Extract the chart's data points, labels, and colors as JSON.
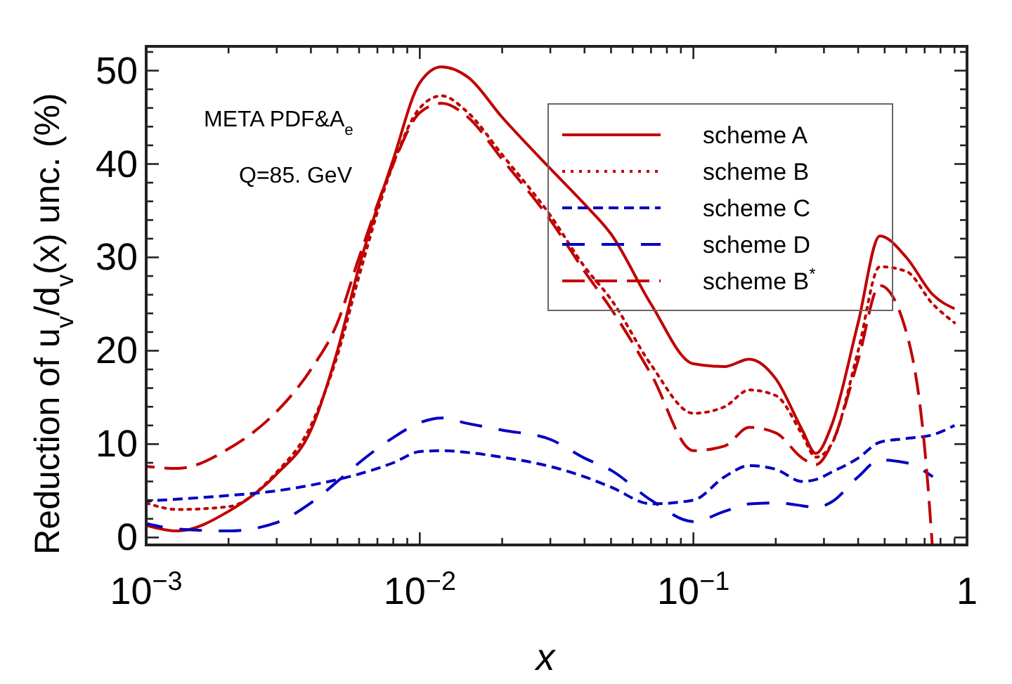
{
  "chart_data": {
    "type": "line",
    "xlabel": "x",
    "ylabel": "Reduction of u$_{v}$/d$_{v}$(x) unc. (%)",
    "annotations": [
      "META PDF&A$_{e}$",
      "Q=85. GeV"
    ],
    "log": "x",
    "legend": "top right",
    "grid": false,
    "xlim": [
      0.001,
      1
    ],
    "xticks": [
      {
        "value": 0.001,
        "label": "10$^{−3}$"
      },
      {
        "value": 0.002,
        "label": null
      },
      {
        "value": 0.003,
        "label": null
      },
      {
        "value": 0.004,
        "label": null
      },
      {
        "value": 0.005,
        "label": null
      },
      {
        "value": 0.006,
        "label": null
      },
      {
        "value": 0.007,
        "label": null
      },
      {
        "value": 0.008,
        "label": null
      },
      {
        "value": 0.009,
        "label": null
      },
      {
        "value": 0.01,
        "label": "10$^{−2}$"
      },
      {
        "value": 0.02,
        "label": null
      },
      {
        "value": 0.03,
        "label": null
      },
      {
        "value": 0.04,
        "label": null
      },
      {
        "value": 0.05,
        "label": null
      },
      {
        "value": 0.06,
        "label": null
      },
      {
        "value": 0.07,
        "label": null
      },
      {
        "value": 0.08,
        "label": null
      },
      {
        "value": 0.09,
        "label": null
      },
      {
        "value": 0.1,
        "label": "10$^{−1}$"
      },
      {
        "value": 0.2,
        "label": null
      },
      {
        "value": 0.3,
        "label": null
      },
      {
        "value": 0.4,
        "label": null
      },
      {
        "value": 0.5,
        "label": null
      },
      {
        "value": 0.6,
        "label": null
      },
      {
        "value": 0.7,
        "label": null
      },
      {
        "value": 0.8,
        "label": null
      },
      {
        "value": 0.9,
        "label": null
      },
      {
        "value": 1,
        "label": "1"
      }
    ],
    "ylim": [
      -0.8,
      52.6
    ],
    "yticks": [
      0,
      {
        "value": 2,
        "label": null
      },
      {
        "value": 4,
        "label": null
      },
      {
        "value": 6,
        "label": null
      },
      {
        "value": 8,
        "label": null
      },
      10,
      {
        "value": 12,
        "label": null
      },
      {
        "value": 14,
        "label": null
      },
      {
        "value": 16,
        "label": null
      },
      {
        "value": 18,
        "label": null
      },
      20,
      {
        "value": 22,
        "label": null
      },
      {
        "value": 24,
        "label": null
      },
      {
        "value": 26,
        "label": null
      },
      {
        "value": 28,
        "label": null
      },
      30,
      {
        "value": 32,
        "label": null
      },
      {
        "value": 34,
        "label": null
      },
      {
        "value": 36,
        "label": null
      },
      {
        "value": 38,
        "label": null
      },
      40,
      {
        "value": 42,
        "label": null
      },
      {
        "value": 44,
        "label": null
      },
      {
        "value": 46,
        "label": null
      },
      {
        "value": 48,
        "label": null
      },
      50,
      {
        "value": 52,
        "label": null
      }
    ],
    "x": [
      0.001,
      0.0013,
      0.002,
      0.003,
      0.004,
      0.005,
      0.006,
      0.008,
      0.01,
      0.012,
      0.015,
      0.02,
      0.03,
      0.04,
      0.05,
      0.07,
      0.1,
      0.13,
      0.16,
      0.2,
      0.25,
      0.28,
      0.32,
      0.4,
      0.48,
      0.6,
      0.75,
      0.9
    ],
    "series": [
      {
        "name": "scheme A",
        "color": "#c00000",
        "line_style": "solid",
        "values": [
          1.3,
          0.7,
          2.8,
          6.8,
          11.5,
          20,
          29,
          40.5,
          48.7,
          50.4,
          49.3,
          45,
          39.5,
          35.7,
          32.5,
          25,
          18.6,
          18.3,
          19.1,
          17,
          11.5,
          9,
          12,
          23,
          32.3,
          30,
          26,
          24.5
        ]
      },
      {
        "name": "scheme B",
        "color": "#c00000",
        "line_style": "dotted",
        "values": [
          3.7,
          3,
          3.3,
          7,
          12,
          19.5,
          28,
          40,
          46,
          47.3,
          45.5,
          41,
          34.5,
          29,
          25.5,
          18.5,
          13.3,
          14,
          15.8,
          15.2,
          11,
          8.6,
          10,
          20,
          29,
          28.5,
          25,
          23
        ]
      },
      {
        "name": "scheme C",
        "color": "#0000c0",
        "line_style": "dashed",
        "values": [
          3.9,
          4.1,
          4.5,
          5,
          5.6,
          6.2,
          6.8,
          8,
          9.2,
          9.3,
          9.1,
          8.6,
          7.6,
          6.5,
          5.4,
          3.6,
          4,
          6.5,
          7.7,
          7.3,
          6,
          6.2,
          7,
          8.5,
          10.2,
          10.6,
          11,
          12
        ]
      },
      {
        "name": "scheme D",
        "color": "#0000c0",
        "line_style": "dashed",
        "x": [
          0.001,
          0.0013,
          0.002,
          0.003,
          0.004,
          0.005,
          0.006,
          0.008,
          0.01,
          0.012,
          0.015,
          0.02,
          0.03,
          0.04,
          0.05,
          0.07,
          0.1,
          0.13,
          0.16,
          0.2,
          0.25,
          0.28,
          0.32,
          0.4,
          0.48,
          0.6,
          0.75
        ],
        "values": [
          1.5,
          0.9,
          0.7,
          1.6,
          3.7,
          6,
          8,
          10.7,
          12.3,
          12.8,
          12.2,
          11.5,
          10.5,
          8.5,
          7.2,
          4,
          1.7,
          2.8,
          3.6,
          3.7,
          3.4,
          3.2,
          3.8,
          6.5,
          8.3,
          8,
          6.5
        ]
      },
      {
        "name": "scheme  B$^{*}$",
        "color": "#c00000",
        "line_style": "dashed",
        "x": [
          0.001,
          0.0013,
          0.002,
          0.003,
          0.004,
          0.005,
          0.006,
          0.008,
          0.01,
          0.012,
          0.015,
          0.02,
          0.03,
          0.04,
          0.05,
          0.07,
          0.1,
          0.13,
          0.16,
          0.2,
          0.25,
          0.28,
          0.32,
          0.4,
          0.48,
          0.6,
          0.72,
          0.746
        ],
        "values": [
          7.6,
          7.4,
          9.5,
          13.5,
          18,
          23,
          30,
          40,
          45.5,
          46.5,
          45,
          40.5,
          34,
          28.5,
          24.5,
          17.5,
          9.3,
          9.8,
          11.8,
          11.2,
          8.5,
          7.8,
          10,
          19,
          27,
          22,
          5.5,
          -0.7
        ]
      }
    ]
  }
}
